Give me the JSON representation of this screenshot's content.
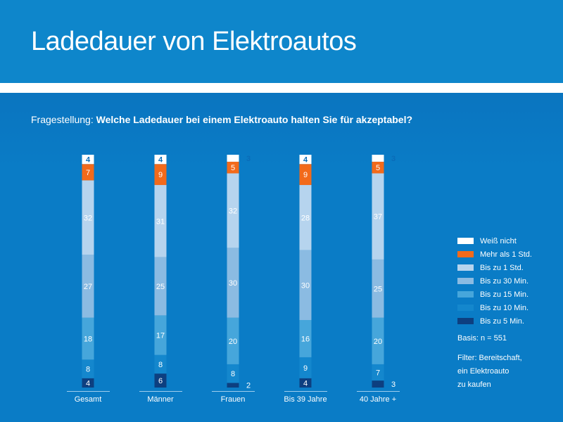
{
  "header": {
    "title": "Ladedauer von Elektroautos"
  },
  "question": {
    "prefix": "Fragestellung: ",
    "text": "Welche Ladedauer bei einem Elektroauto halten Sie für akzeptabel?"
  },
  "notes": {
    "basis": "Basis: n = 551",
    "filter": [
      "Filter: Bereitschaft,",
      "ein Elektroauto",
      "zu kaufen"
    ]
  },
  "chart_data": {
    "type": "bar",
    "stacked": true,
    "ylim": [
      0,
      100
    ],
    "legend_position": "right",
    "categories": [
      "Gesamt",
      "Männer",
      "Frauen",
      "Bis 39 Jahre",
      "40 Jahre +"
    ],
    "series": [
      {
        "name": "Bis zu 5 Min.",
        "color": "#0d3f80",
        "values": [
          4,
          6,
          2,
          4,
          3
        ]
      },
      {
        "name": "Bis zu 10 Min.",
        "color": "#1487cd",
        "values": [
          8,
          8,
          8,
          9,
          7
        ]
      },
      {
        "name": "Bis zu 15 Min.",
        "color": "#46a6db",
        "values": [
          18,
          17,
          20,
          16,
          20
        ]
      },
      {
        "name": "Bis zu 30 Min.",
        "color": "#8bbbe2",
        "values": [
          27,
          25,
          30,
          30,
          25
        ]
      },
      {
        "name": "Bis zu 1 Std.",
        "color": "#b6d4ee",
        "values": [
          32,
          31,
          32,
          28,
          37
        ]
      },
      {
        "name": "Mehr als 1 Std.",
        "color": "#f26a1b",
        "values": [
          7,
          9,
          5,
          9,
          5
        ]
      },
      {
        "name": "Weiß nicht",
        "color": "#ffffff",
        "values": [
          4,
          4,
          3,
          4,
          3
        ]
      }
    ]
  }
}
